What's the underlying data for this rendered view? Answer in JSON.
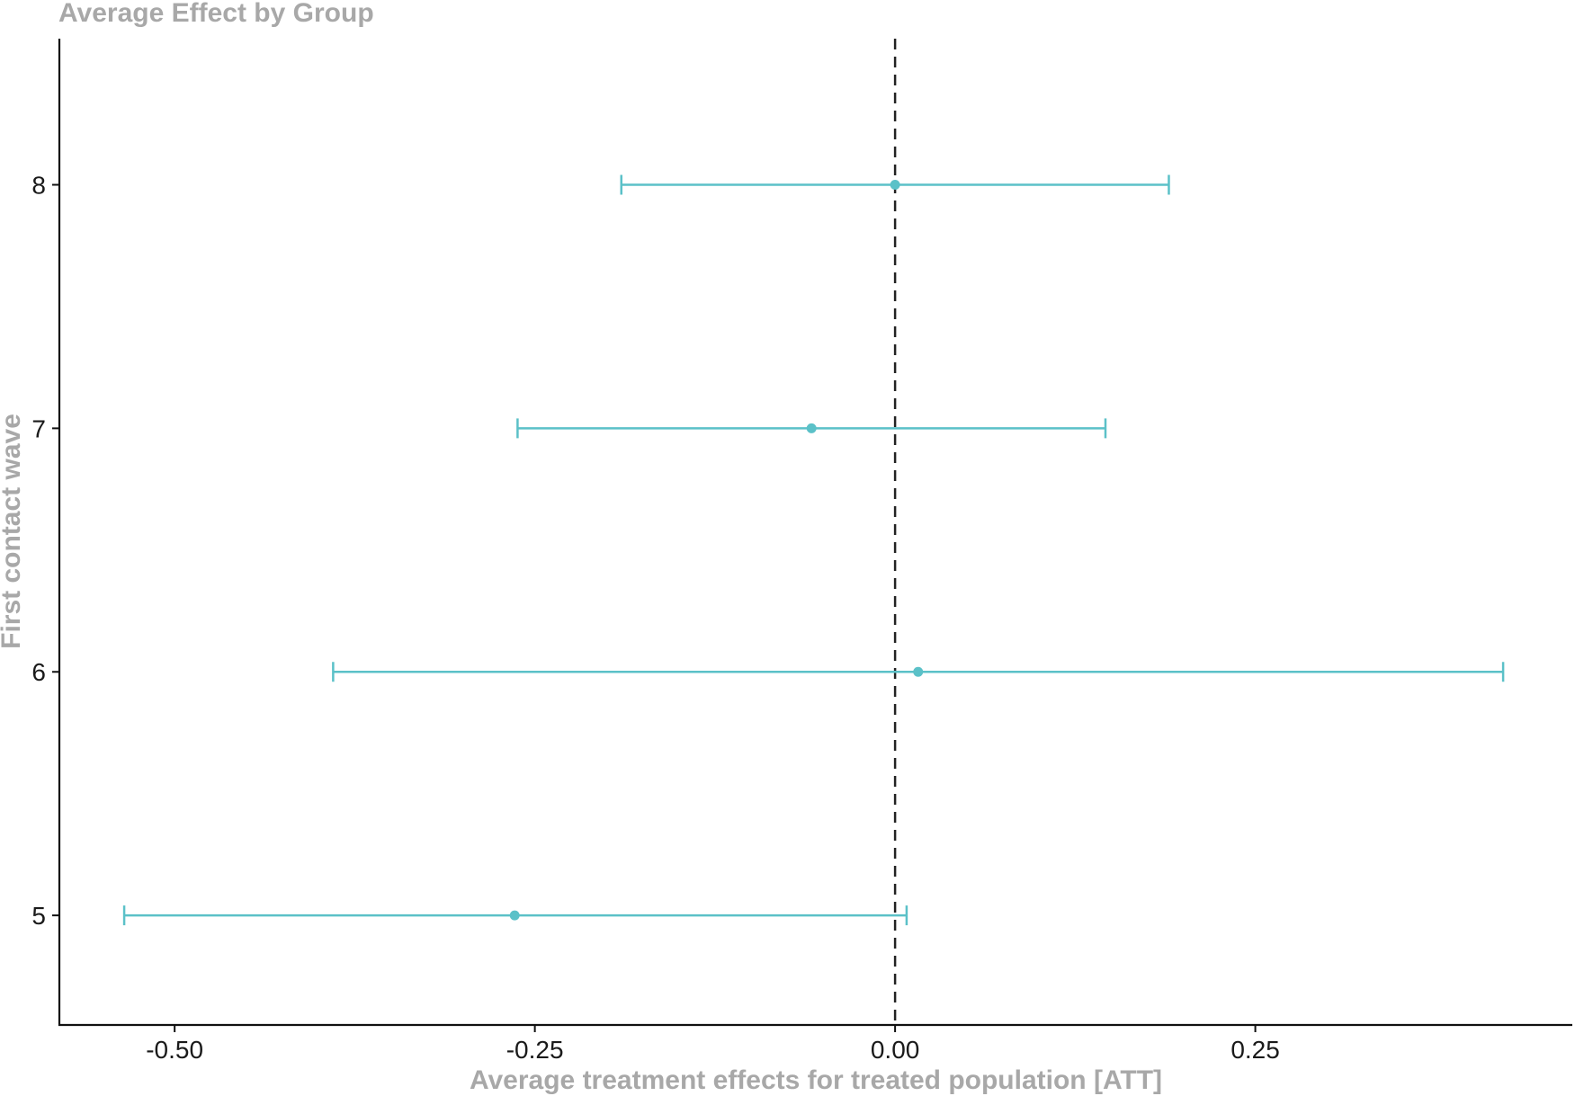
{
  "chart_data": {
    "type": "scatter",
    "subtype": "point-range",
    "title": "Average Effect by Group",
    "xlabel": "Average treatment effects for treated population [ATT]",
    "ylabel": "First contact wave",
    "xlim": [
      -0.58,
      0.47
    ],
    "ylim": [
      4.55,
      8.6
    ],
    "x_ticks": [
      -0.5,
      -0.25,
      0.0,
      0.25
    ],
    "x_tick_labels": [
      "-0.50",
      "-0.25",
      "0.00",
      "0.25"
    ],
    "y_ticks": [
      5,
      6,
      7,
      8
    ],
    "y_tick_labels": [
      "5",
      "6",
      "7",
      "8"
    ],
    "reference_line": {
      "x": 0,
      "style": "dashed"
    },
    "grid": false,
    "legend": "none",
    "color": "#5bc1c8",
    "points": [
      {
        "group": 8,
        "estimate": 0.0,
        "ci_low": -0.19,
        "ci_high": 0.19
      },
      {
        "group": 7,
        "estimate": -0.058,
        "ci_low": -0.262,
        "ci_high": 0.146
      },
      {
        "group": 6,
        "estimate": 0.016,
        "ci_low": -0.39,
        "ci_high": 0.422
      },
      {
        "group": 5,
        "estimate": -0.264,
        "ci_low": -0.535,
        "ci_high": 0.008
      }
    ]
  }
}
